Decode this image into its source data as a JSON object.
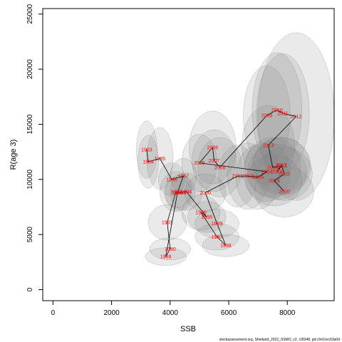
{
  "chart_data": {
    "type": "scatter",
    "xlabel": "SSB",
    "ylabel": "R(age 3)",
    "xlim": [
      -350,
      9600
    ],
    "ylim": [
      -1000,
      25500
    ],
    "xticks": [
      0,
      2000,
      4000,
      6000,
      8000
    ],
    "yticks": [
      0,
      5000,
      10000,
      15000,
      20000,
      25000
    ],
    "grid": false,
    "point_color": "#ff0000",
    "ellipse_fill": "#808080",
    "points": [
      {
        "year": "1983",
        "x": 3200,
        "y": 12700,
        "rx": 350,
        "ry": 2600
      },
      {
        "year": "1984",
        "x": 3250,
        "y": 11600,
        "rx": 350,
        "ry": 2400
      },
      {
        "year": "1985",
        "x": 3650,
        "y": 11900,
        "rx": 450,
        "ry": 2800
      },
      {
        "year": "1986",
        "x": 4050,
        "y": 10000,
        "rx": 450,
        "ry": 1500
      },
      {
        "year": "1987",
        "x": 4450,
        "y": 10300,
        "rx": 450,
        "ry": 1600
      },
      {
        "year": "1988",
        "x": 4250,
        "y": 8800,
        "rx": 450,
        "ry": 1400
      },
      {
        "year": "1989",
        "x": 3850,
        "y": 3000,
        "rx": 700,
        "ry": 800
      },
      {
        "year": "1990",
        "x": 4000,
        "y": 3700,
        "rx": 700,
        "ry": 1000
      },
      {
        "year": "1991",
        "x": 3900,
        "y": 6100,
        "rx": 650,
        "ry": 1600
      },
      {
        "year": "1992",
        "x": 4200,
        "y": 8900,
        "rx": 550,
        "ry": 1800
      },
      {
        "year": "1993",
        "x": 4350,
        "y": 8800,
        "rx": 500,
        "ry": 1600
      },
      {
        "year": "1994",
        "x": 4550,
        "y": 8900,
        "rx": 550,
        "ry": 1700
      },
      {
        "year": "1995",
        "x": 5250,
        "y": 6600,
        "rx": 650,
        "ry": 1400
      },
      {
        "year": "1996",
        "x": 5050,
        "y": 7000,
        "rx": 650,
        "ry": 1600
      },
      {
        "year": "1997",
        "x": 5600,
        "y": 4800,
        "rx": 750,
        "ry": 1200
      },
      {
        "year": "1998",
        "x": 5900,
        "y": 4000,
        "rx": 800,
        "ry": 1000
      },
      {
        "year": "1999",
        "x": 5600,
        "y": 6000,
        "rx": 750,
        "ry": 1300
      },
      {
        "year": "2000",
        "x": 5200,
        "y": 8800,
        "rx": 700,
        "ry": 1700
      },
      {
        "year": "2001",
        "x": 6300,
        "y": 10300,
        "rx": 650,
        "ry": 2800
      },
      {
        "year": "2002",
        "x": 6650,
        "y": 10300,
        "rx": 700,
        "ry": 3000
      },
      {
        "year": "2003",
        "x": 7000,
        "y": 10200,
        "rx": 750,
        "ry": 2900
      },
      {
        "year": "2004",
        "x": 7300,
        "y": 10700,
        "rx": 800,
        "ry": 2700
      },
      {
        "year": "2005",
        "x": 5000,
        "y": 11500,
        "rx": 600,
        "ry": 2600
      },
      {
        "year": "2006",
        "x": 5450,
        "y": 12900,
        "rx": 800,
        "ry": 3300
      },
      {
        "year": "2007",
        "x": 5500,
        "y": 11700,
        "rx": 750,
        "ry": 2800
      },
      {
        "year": "2008",
        "x": 5700,
        "y": 11100,
        "rx": 750,
        "ry": 2700
      },
      {
        "year": "2009",
        "x": 7300,
        "y": 15800,
        "rx": 800,
        "ry": 4500
      },
      {
        "year": "2010",
        "x": 7650,
        "y": 16300,
        "rx": 850,
        "ry": 5200
      },
      {
        "year": "2011",
        "x": 7850,
        "y": 16000,
        "rx": 900,
        "ry": 5400
      },
      {
        "year": "2012",
        "x": 8300,
        "y": 15700,
        "rx": 1300,
        "ry": 7600
      },
      {
        "year": "2013",
        "x": 7350,
        "y": 13100,
        "rx": 900,
        "ry": 3600
      },
      {
        "year": "2014",
        "x": 7500,
        "y": 11100,
        "rx": 950,
        "ry": 2700
      },
      {
        "year": "2015",
        "x": 7800,
        "y": 11200,
        "rx": 1000,
        "ry": 2600
      },
      {
        "year": "2016",
        "x": 7650,
        "y": 10700,
        "rx": 1000,
        "ry": 2500
      },
      {
        "year": "2017",
        "x": 7800,
        "y": 11300,
        "rx": 950,
        "ry": 2500
      },
      {
        "year": "2018",
        "x": 7900,
        "y": 10500,
        "rx": 950,
        "ry": 2400
      },
      {
        "year": "2019",
        "x": 7550,
        "y": 9900,
        "rx": 950,
        "ry": 2300
      },
      {
        "year": "2020",
        "x": 7900,
        "y": 8900,
        "rx": 1000,
        "ry": 2300
      }
    ]
  },
  "footnote": "stockassessment.org, Shetland_2022_SSMO_v2, r18348, git:c9c61ec53a0d"
}
